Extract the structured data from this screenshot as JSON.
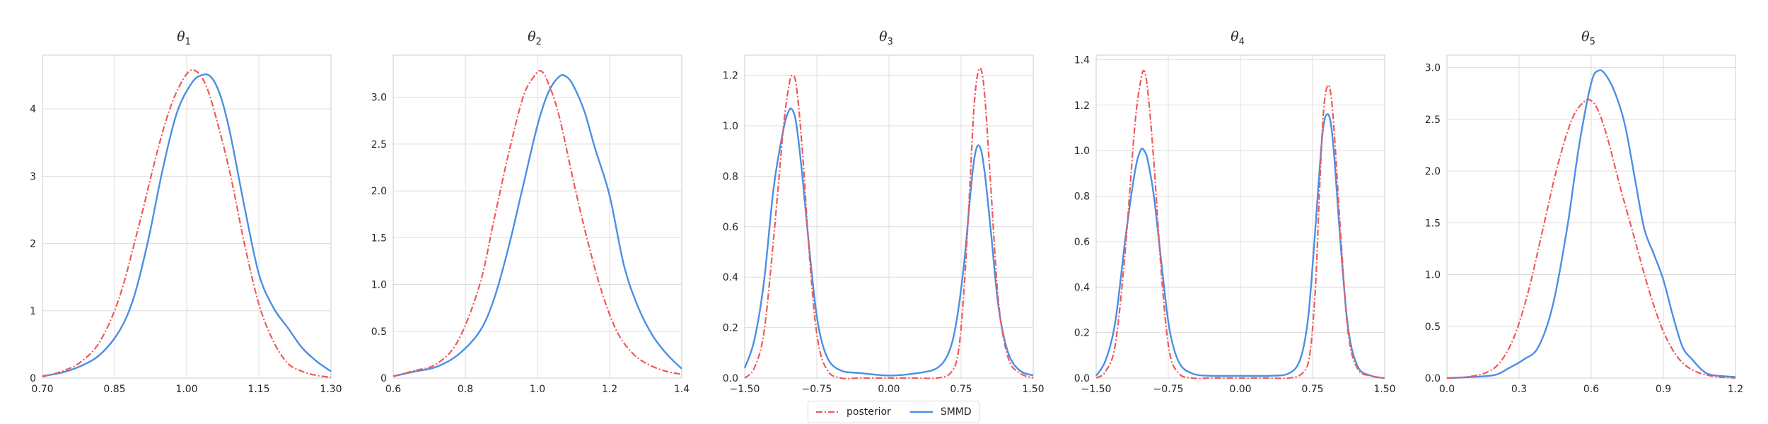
{
  "legend": {
    "posterior_label": "posterior",
    "smmd_label": "SMMD"
  },
  "colors": {
    "posterior": "#f15a5a",
    "smmd": "#4a8fe6",
    "grid": "#dddddd",
    "axis": "#cccccc"
  },
  "chart_data": [
    {
      "type": "line",
      "title": "θ",
      "title_sub": "1",
      "xlabel": "",
      "ylabel": "",
      "xlim": [
        0.7,
        1.3
      ],
      "ylim": [
        0,
        4.8
      ],
      "xticks": [
        0.7,
        0.85,
        1.0,
        1.15,
        1.3
      ],
      "xtick_labels": [
        "0.70",
        "0.85",
        "1.00",
        "1.15",
        "1.30"
      ],
      "yticks": [
        0,
        1,
        2,
        3,
        4
      ],
      "ytick_labels": [
        "0",
        "1",
        "2",
        "3",
        "4"
      ],
      "grid": true,
      "series": [
        {
          "name": "posterior",
          "style": "dashdot",
          "x": [
            0.7,
            0.74,
            0.78,
            0.82,
            0.86,
            0.9,
            0.94,
            0.97,
            1.0,
            1.02,
            1.04,
            1.06,
            1.09,
            1.12,
            1.15,
            1.18,
            1.21,
            1.24,
            1.27,
            1.3
          ],
          "y": [
            0.02,
            0.1,
            0.24,
            0.55,
            1.2,
            2.25,
            3.4,
            4.1,
            4.52,
            4.56,
            4.35,
            3.9,
            3.05,
            2.0,
            1.1,
            0.55,
            0.22,
            0.1,
            0.04,
            0.01
          ]
        },
        {
          "name": "SMMD",
          "style": "solid",
          "x": [
            0.7,
            0.74,
            0.78,
            0.82,
            0.86,
            0.89,
            0.92,
            0.95,
            0.98,
            1.01,
            1.03,
            1.05,
            1.07,
            1.09,
            1.12,
            1.15,
            1.18,
            1.21,
            1.24,
            1.27,
            1.3
          ],
          "y": [
            0.03,
            0.08,
            0.18,
            0.35,
            0.7,
            1.2,
            2.05,
            3.1,
            3.95,
            4.38,
            4.5,
            4.48,
            4.2,
            3.65,
            2.55,
            1.55,
            1.05,
            0.75,
            0.45,
            0.25,
            0.1
          ]
        }
      ]
    },
    {
      "type": "line",
      "title": "θ",
      "title_sub": "2",
      "xlabel": "",
      "ylabel": "",
      "xlim": [
        0.6,
        1.4
      ],
      "ylim": [
        0,
        3.45
      ],
      "xticks": [
        0.6,
        0.8,
        1.0,
        1.2,
        1.4
      ],
      "xtick_labels": [
        "0.6",
        "0.8",
        "1.0",
        "1.2",
        "1.4"
      ],
      "yticks": [
        0,
        0.5,
        1.0,
        1.5,
        2.0,
        2.5,
        3.0
      ],
      "ytick_labels": [
        "0",
        "0.5",
        "1.0",
        "1.5",
        "2.0",
        "2.5",
        "3.0"
      ],
      "grid": true,
      "series": [
        {
          "name": "posterior",
          "style": "dashdot",
          "x": [
            0.6,
            0.66,
            0.72,
            0.78,
            0.84,
            0.88,
            0.92,
            0.96,
            0.99,
            1.01,
            1.03,
            1.06,
            1.1,
            1.14,
            1.18,
            1.22,
            1.26,
            1.3,
            1.35,
            1.4
          ],
          "y": [
            0.02,
            0.08,
            0.15,
            0.4,
            1.0,
            1.7,
            2.4,
            3.0,
            3.22,
            3.28,
            3.15,
            2.8,
            2.1,
            1.45,
            0.9,
            0.5,
            0.28,
            0.16,
            0.08,
            0.04
          ]
        },
        {
          "name": "SMMD",
          "style": "solid",
          "x": [
            0.6,
            0.66,
            0.72,
            0.78,
            0.84,
            0.88,
            0.92,
            0.96,
            1.0,
            1.03,
            1.06,
            1.08,
            1.1,
            1.13,
            1.16,
            1.2,
            1.24,
            1.28,
            1.32,
            1.36,
            1.4
          ],
          "y": [
            0.02,
            0.07,
            0.12,
            0.25,
            0.5,
            0.85,
            1.4,
            2.05,
            2.7,
            3.05,
            3.22,
            3.22,
            3.12,
            2.85,
            2.45,
            1.95,
            1.2,
            0.75,
            0.45,
            0.25,
            0.1
          ]
        }
      ]
    },
    {
      "type": "line",
      "title": "θ",
      "title_sub": "3",
      "xlabel": "",
      "ylabel": "",
      "xlim": [
        -1.5,
        1.5
      ],
      "ylim": [
        0,
        1.28
      ],
      "xticks": [
        -1.5,
        -0.75,
        0,
        0.75,
        1.5
      ],
      "xtick_labels": [
        "−1.50",
        "−0.75",
        "0.00",
        "0.75",
        "1.50"
      ],
      "yticks": [
        0,
        0.2,
        0.4,
        0.6,
        0.8,
        1.0,
        1.2
      ],
      "ytick_labels": [
        "0.0",
        "0.2",
        "0.4",
        "0.6",
        "0.8",
        "1.0",
        "1.2"
      ],
      "grid": true,
      "series": [
        {
          "name": "posterior",
          "style": "dashdot",
          "x": [
            -1.5,
            -1.4,
            -1.3,
            -1.2,
            -1.1,
            -1.04,
            -1.0,
            -0.96,
            -0.9,
            -0.82,
            -0.74,
            -0.64,
            -0.5,
            -0.3,
            0.0,
            0.3,
            0.5,
            0.64,
            0.72,
            0.78,
            0.84,
            0.88,
            0.92,
            0.96,
            1.0,
            1.06,
            1.14,
            1.24,
            1.36,
            1.5
          ],
          "y": [
            0.0,
            0.04,
            0.18,
            0.55,
            0.98,
            1.16,
            1.2,
            1.15,
            0.9,
            0.45,
            0.15,
            0.03,
            0.0,
            0.0,
            0.0,
            0.0,
            0.0,
            0.02,
            0.1,
            0.35,
            0.75,
            1.05,
            1.2,
            1.22,
            1.1,
            0.75,
            0.3,
            0.08,
            0.02,
            0.0
          ]
        },
        {
          "name": "SMMD",
          "style": "solid",
          "x": [
            -1.5,
            -1.4,
            -1.3,
            -1.2,
            -1.1,
            -1.04,
            -1.0,
            -0.96,
            -0.9,
            -0.82,
            -0.74,
            -0.64,
            -0.5,
            -0.3,
            0.0,
            0.3,
            0.5,
            0.62,
            0.7,
            0.78,
            0.84,
            0.88,
            0.92,
            0.96,
            1.0,
            1.06,
            1.14,
            1.24,
            1.36,
            1.5
          ],
          "y": [
            0.04,
            0.15,
            0.38,
            0.75,
            0.98,
            1.06,
            1.06,
            1.0,
            0.8,
            0.48,
            0.22,
            0.08,
            0.03,
            0.02,
            0.01,
            0.02,
            0.04,
            0.1,
            0.22,
            0.45,
            0.7,
            0.85,
            0.92,
            0.9,
            0.8,
            0.58,
            0.28,
            0.1,
            0.03,
            0.01
          ]
        }
      ]
    },
    {
      "type": "line",
      "title": "θ",
      "title_sub": "4",
      "xlabel": "",
      "ylabel": "",
      "xlim": [
        -1.5,
        1.5
      ],
      "ylim": [
        0,
        1.42
      ],
      "xticks": [
        -1.5,
        -0.75,
        0,
        0.75,
        1.5
      ],
      "xtick_labels": [
        "−1.50",
        "−0.75",
        "0.00",
        "0.75",
        "1.50"
      ],
      "yticks": [
        0,
        0.2,
        0.4,
        0.6,
        0.8,
        1.0,
        1.2,
        1.4
      ],
      "ytick_labels": [
        "0.0",
        "0.2",
        "0.4",
        "0.6",
        "0.8",
        "1.0",
        "1.2",
        "1.4"
      ],
      "grid": true,
      "series": [
        {
          "name": "posterior",
          "style": "dashdot",
          "x": [
            -1.5,
            -1.4,
            -1.3,
            -1.2,
            -1.1,
            -1.04,
            -1.0,
            -0.96,
            -0.9,
            -0.82,
            -0.74,
            -0.64,
            -0.5,
            -0.3,
            0.0,
            0.3,
            0.5,
            0.64,
            0.72,
            0.78,
            0.82,
            0.86,
            0.9,
            0.94,
            0.98,
            1.04,
            1.12,
            1.22,
            1.36,
            1.5
          ],
          "y": [
            0.0,
            0.03,
            0.15,
            0.55,
            1.1,
            1.3,
            1.35,
            1.25,
            0.95,
            0.45,
            0.12,
            0.02,
            0.0,
            0.0,
            0.0,
            0.0,
            0.0,
            0.02,
            0.1,
            0.4,
            0.8,
            1.15,
            1.28,
            1.25,
            1.05,
            0.65,
            0.2,
            0.04,
            0.01,
            0.0
          ]
        },
        {
          "name": "SMMD",
          "style": "solid",
          "x": [
            -1.5,
            -1.4,
            -1.3,
            -1.2,
            -1.1,
            -1.04,
            -1.0,
            -0.96,
            -0.9,
            -0.82,
            -0.74,
            -0.64,
            -0.5,
            -0.3,
            0.0,
            0.3,
            0.5,
            0.62,
            0.7,
            0.76,
            0.82,
            0.86,
            0.9,
            0.94,
            0.98,
            1.04,
            1.12,
            1.22,
            1.36,
            1.5
          ],
          "y": [
            0.01,
            0.08,
            0.25,
            0.6,
            0.9,
            1.0,
            1.0,
            0.95,
            0.8,
            0.5,
            0.22,
            0.07,
            0.02,
            0.01,
            0.01,
            0.01,
            0.02,
            0.08,
            0.25,
            0.55,
            0.9,
            1.1,
            1.16,
            1.12,
            0.95,
            0.6,
            0.22,
            0.05,
            0.01,
            0.0
          ]
        }
      ]
    },
    {
      "type": "line",
      "title": "θ",
      "title_sub": "5",
      "xlabel": "",
      "ylabel": "",
      "xlim": [
        0.0,
        1.2
      ],
      "ylim": [
        0,
        3.12
      ],
      "xticks": [
        0.0,
        0.3,
        0.6,
        0.9,
        1.2
      ],
      "xtick_labels": [
        "0.0",
        "0.3",
        "0.6",
        "0.9",
        "1.2"
      ],
      "yticks": [
        0,
        0.5,
        1.0,
        1.5,
        2.0,
        2.5,
        3.0
      ],
      "ytick_labels": [
        "0.0",
        "0.5",
        "1.0",
        "1.5",
        "2.0",
        "2.5",
        "3.0"
      ],
      "grid": true,
      "series": [
        {
          "name": "posterior",
          "style": "dashdot",
          "x": [
            0.0,
            0.08,
            0.16,
            0.22,
            0.28,
            0.34,
            0.4,
            0.46,
            0.52,
            0.57,
            0.6,
            0.63,
            0.67,
            0.72,
            0.78,
            0.84,
            0.9,
            0.96,
            1.02,
            1.1,
            1.2
          ],
          "y": [
            0.0,
            0.01,
            0.05,
            0.15,
            0.4,
            0.85,
            1.45,
            2.05,
            2.5,
            2.67,
            2.68,
            2.58,
            2.3,
            1.85,
            1.35,
            0.85,
            0.45,
            0.2,
            0.08,
            0.02,
            0.0
          ]
        },
        {
          "name": "SMMD",
          "style": "solid",
          "x": [
            0.0,
            0.1,
            0.2,
            0.26,
            0.32,
            0.38,
            0.44,
            0.5,
            0.55,
            0.6,
            0.63,
            0.66,
            0.7,
            0.74,
            0.78,
            0.82,
            0.86,
            0.9,
            0.94,
            0.98,
            1.02,
            1.06,
            1.1,
            1.2
          ],
          "y": [
            0.0,
            0.01,
            0.03,
            0.1,
            0.18,
            0.3,
            0.7,
            1.45,
            2.25,
            2.85,
            2.97,
            2.93,
            2.75,
            2.45,
            1.95,
            1.45,
            1.2,
            0.95,
            0.6,
            0.3,
            0.18,
            0.08,
            0.03,
            0.01
          ]
        }
      ]
    }
  ]
}
